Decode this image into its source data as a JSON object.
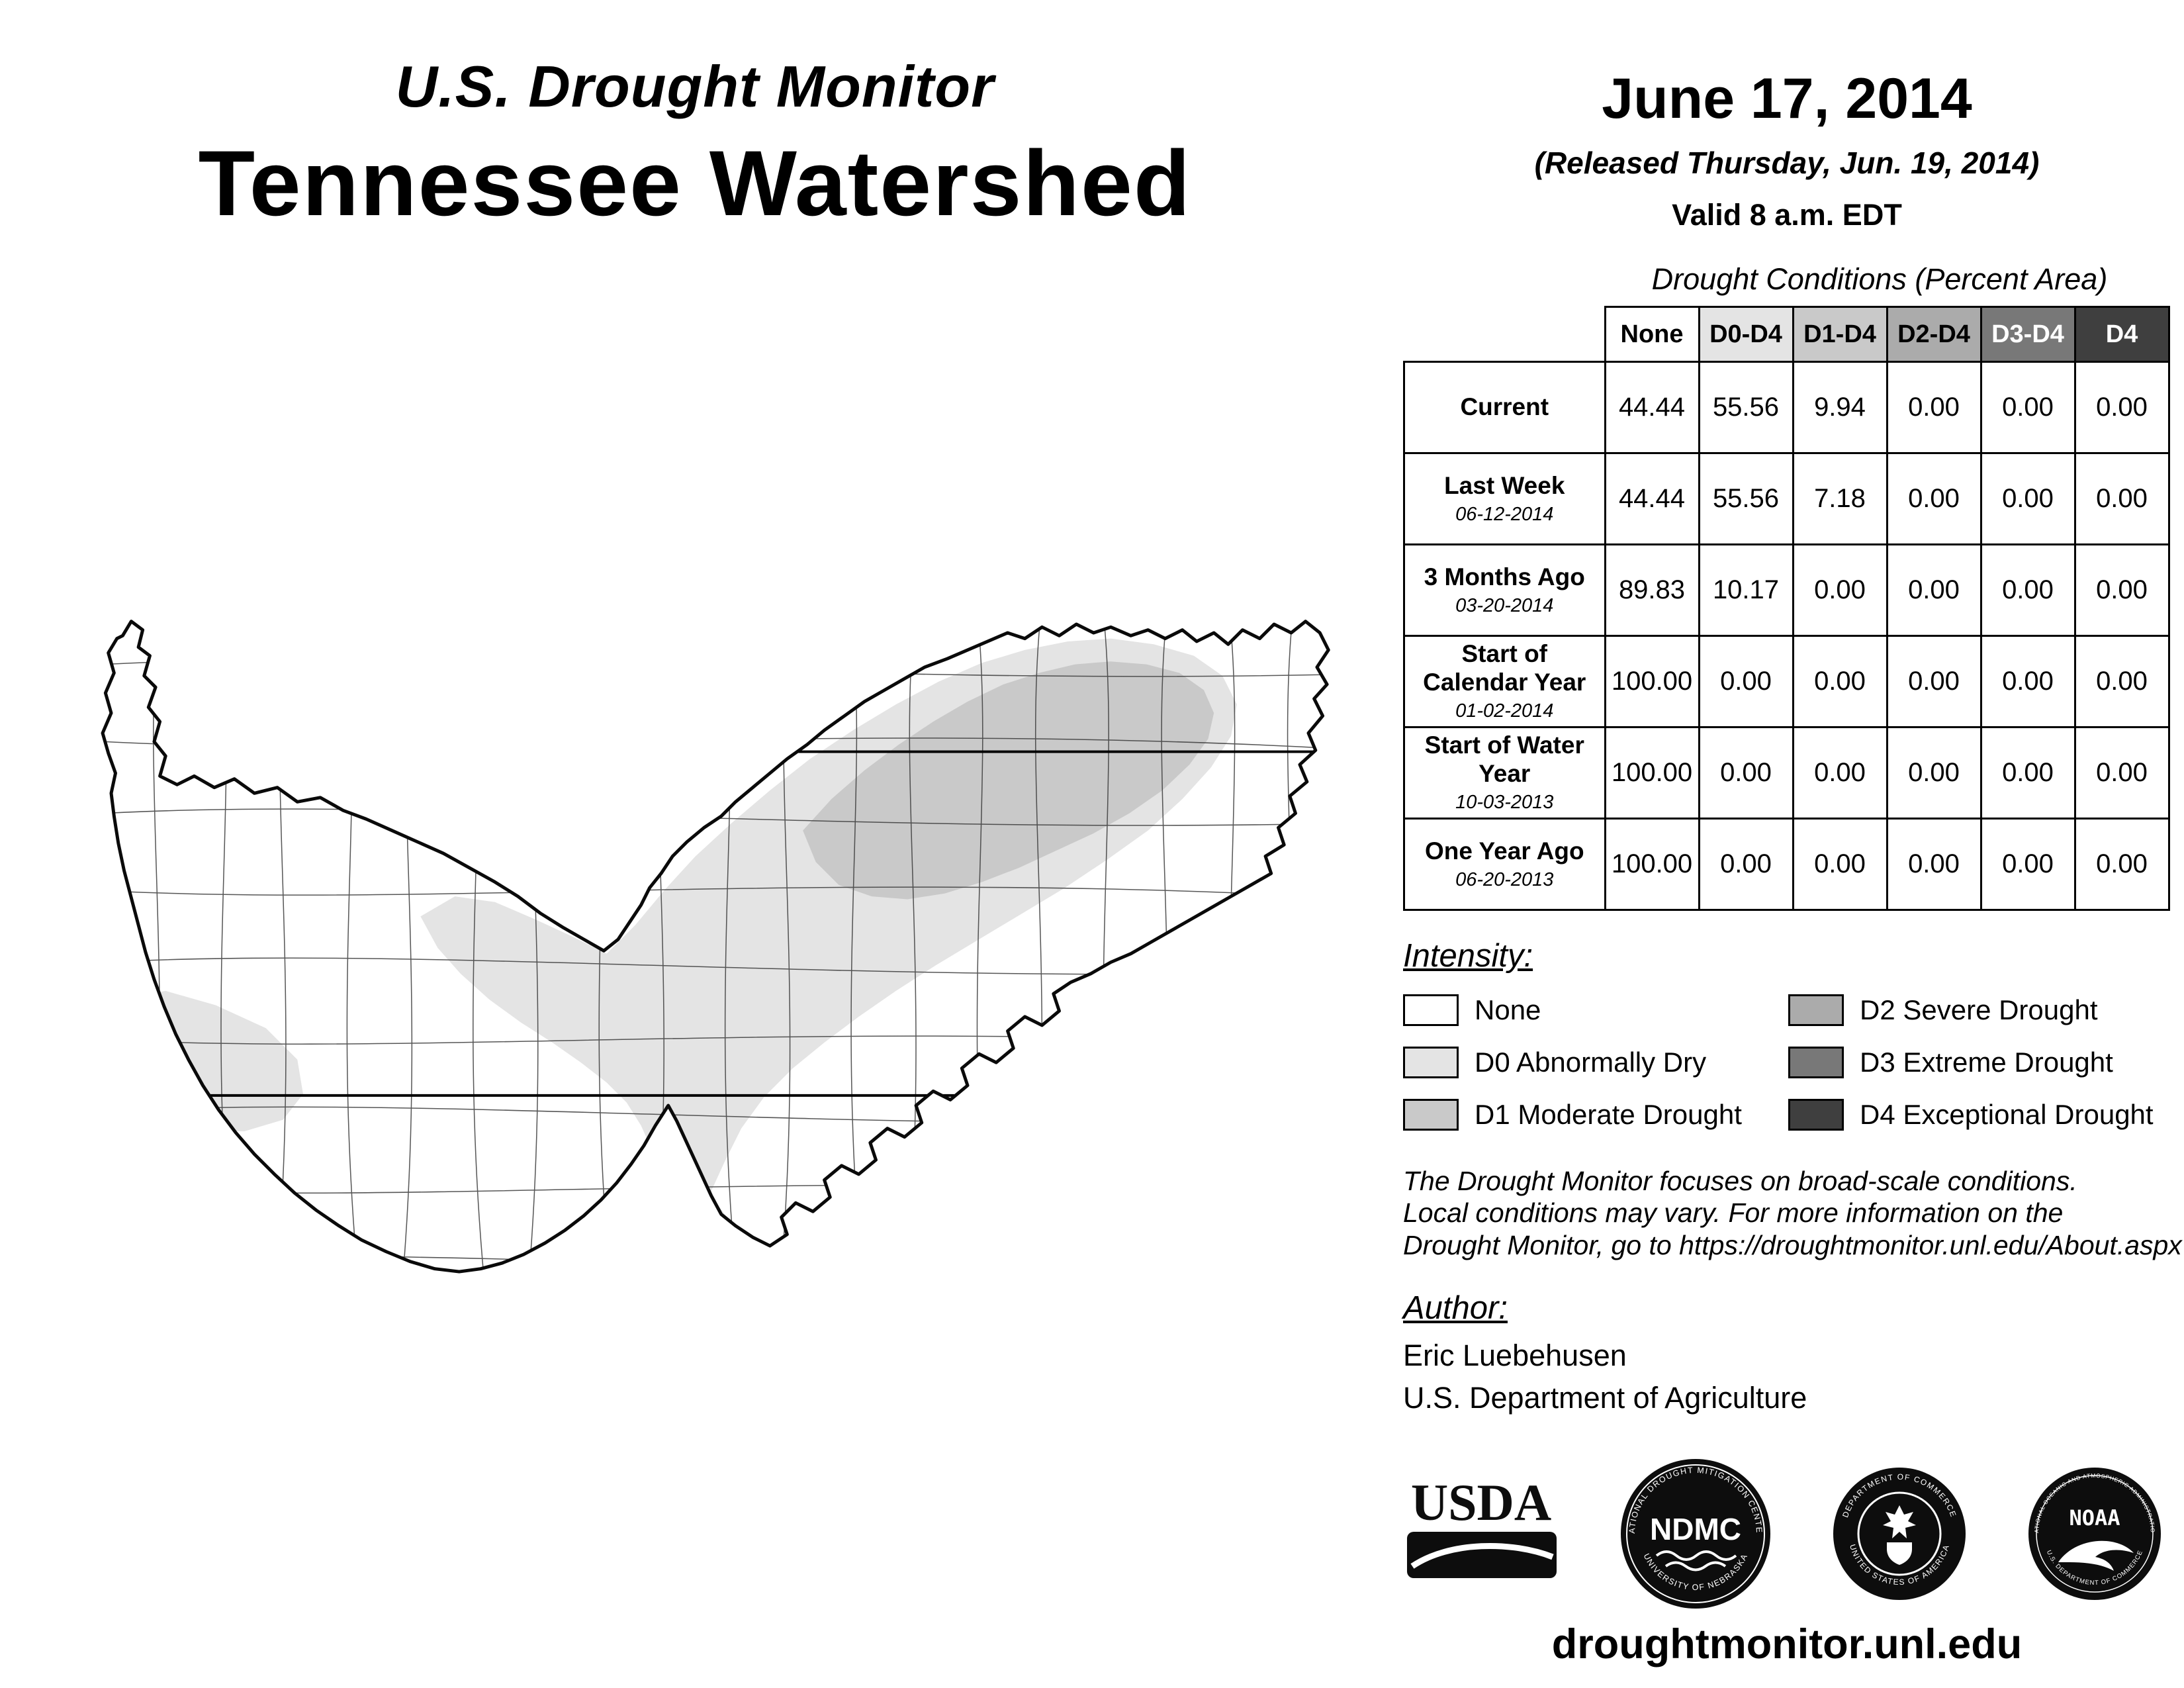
{
  "header": {
    "kicker": "U.S. Drought Monitor",
    "title": "Tennessee Watershed",
    "date": "June 17, 2014",
    "released": "(Released Thursday, Jun. 19, 2014)",
    "valid": "Valid 8 a.m. EDT"
  },
  "table": {
    "title": "Drought Conditions (Percent Area)",
    "header_cells": [
      {
        "label": "None",
        "bg": "#ffffff",
        "fg": "#000000"
      },
      {
        "label": "D0-D4",
        "bg": "#e4e4e4",
        "fg": "#000000"
      },
      {
        "label": "D1-D4",
        "bg": "#c9c9c9",
        "fg": "#000000"
      },
      {
        "label": "D2-D4",
        "bg": "#ababab",
        "fg": "#000000"
      },
      {
        "label": "D3-D4",
        "bg": "#787878",
        "fg": "#ffffff"
      },
      {
        "label": "D4",
        "bg": "#3f3f3f",
        "fg": "#ffffff"
      }
    ],
    "rows": [
      {
        "label": "Current",
        "date": "",
        "values": [
          "44.44",
          "55.56",
          "9.94",
          "0.00",
          "0.00",
          "0.00"
        ]
      },
      {
        "label": "Last Week",
        "date": "06-12-2014",
        "values": [
          "44.44",
          "55.56",
          "7.18",
          "0.00",
          "0.00",
          "0.00"
        ]
      },
      {
        "label": "3 Months Ago",
        "date": "03-20-2014",
        "values": [
          "89.83",
          "10.17",
          "0.00",
          "0.00",
          "0.00",
          "0.00"
        ]
      },
      {
        "label": "Start of Calendar Year",
        "date": "01-02-2014",
        "values": [
          "100.00",
          "0.00",
          "0.00",
          "0.00",
          "0.00",
          "0.00"
        ]
      },
      {
        "label": "Start of Water Year",
        "date": "10-03-2013",
        "values": [
          "100.00",
          "0.00",
          "0.00",
          "0.00",
          "0.00",
          "0.00"
        ]
      },
      {
        "label": "One Year Ago",
        "date": "06-20-2013",
        "values": [
          "100.00",
          "0.00",
          "0.00",
          "0.00",
          "0.00",
          "0.00"
        ]
      }
    ]
  },
  "legend": {
    "title": "Intensity:",
    "items": [
      {
        "label": "None",
        "color": "#ffffff"
      },
      {
        "label": "D0 Abnormally Dry",
        "color": "#e4e4e4"
      },
      {
        "label": "D1 Moderate Drought",
        "color": "#c9c9c9"
      },
      {
        "label": "D2 Severe Drought",
        "color": "#ababab"
      },
      {
        "label": "D3 Extreme Drought",
        "color": "#787878"
      },
      {
        "label": "D4 Exceptional Drought",
        "color": "#3f3f3f"
      }
    ]
  },
  "disclaimer": {
    "lines": [
      "The Drought Monitor focuses on broad-scale conditions.",
      "Local conditions may vary. For more information on the",
      "Drought Monitor, go to https://droughtmonitor.unl.edu/About.aspx"
    ]
  },
  "author": {
    "title": "Author:",
    "name": "Eric Luebehusen",
    "org": "U.S. Department of Agriculture"
  },
  "logos": {
    "usda": {
      "text": "USDA"
    },
    "ndmc": {
      "center": "NDMC",
      "ring_top": "NATIONAL DROUGHT MITIGATION CENTER",
      "ring_bottom": "UNIVERSITY OF NEBRASKA"
    },
    "commerce": {
      "ring_top": "DEPARTMENT OF COMMERCE",
      "ring_bottom": "UNITED STATES OF AMERICA"
    },
    "noaa": {
      "text": "NOAA",
      "ring_top": "NATIONAL OCEANIC AND ATMOSPHERIC ADMINISTRATION",
      "ring_bottom": "U.S. DEPARTMENT OF COMMERCE"
    }
  },
  "footer": {
    "url": "droughtmonitor.unl.edu"
  }
}
